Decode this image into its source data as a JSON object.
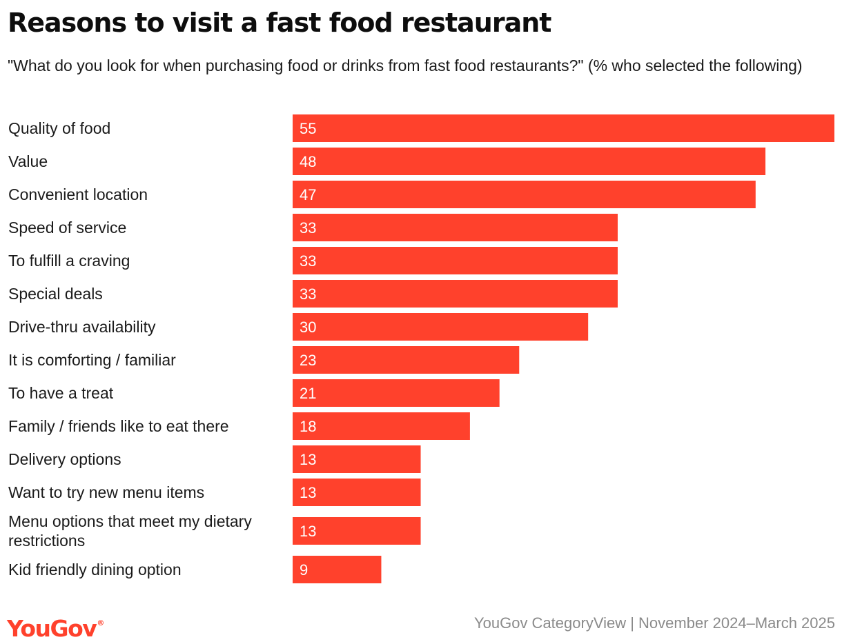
{
  "colors": {
    "bar": "#ff412c",
    "brand": "#ff412c",
    "value_text": "#ffffff",
    "source_text": "#8a8a8a"
  },
  "brand": {
    "logo": "YouGov",
    "logo_mark": "®"
  },
  "footer": {
    "source": "YouGov CategoryView | November 2024–March 2025"
  },
  "chart_data": {
    "type": "bar",
    "orientation": "horizontal",
    "title": "Reasons to visit a fast food restaurant",
    "subtitle": "\"What do you look for when purchasing food or drinks from fast food restaurants?\" (% who selected the following)",
    "xlabel": "",
    "ylabel": "",
    "xlim": [
      0,
      55
    ],
    "grid": false,
    "legend": "none",
    "categories": [
      "Quality of food",
      "Value",
      "Convenient location",
      "Speed of service",
      "To fulfill a craving",
      "Special deals",
      "Drive-thru availability",
      "It is comforting / familiar",
      "To have a treat",
      "Family / friends like to eat there",
      "Delivery options",
      "Want to try new menu items",
      "Menu options that meet my dietary restrictions",
      "Kid friendly dining option"
    ],
    "values": [
      55,
      48,
      47,
      33,
      33,
      33,
      30,
      23,
      21,
      18,
      13,
      13,
      13,
      9
    ]
  }
}
